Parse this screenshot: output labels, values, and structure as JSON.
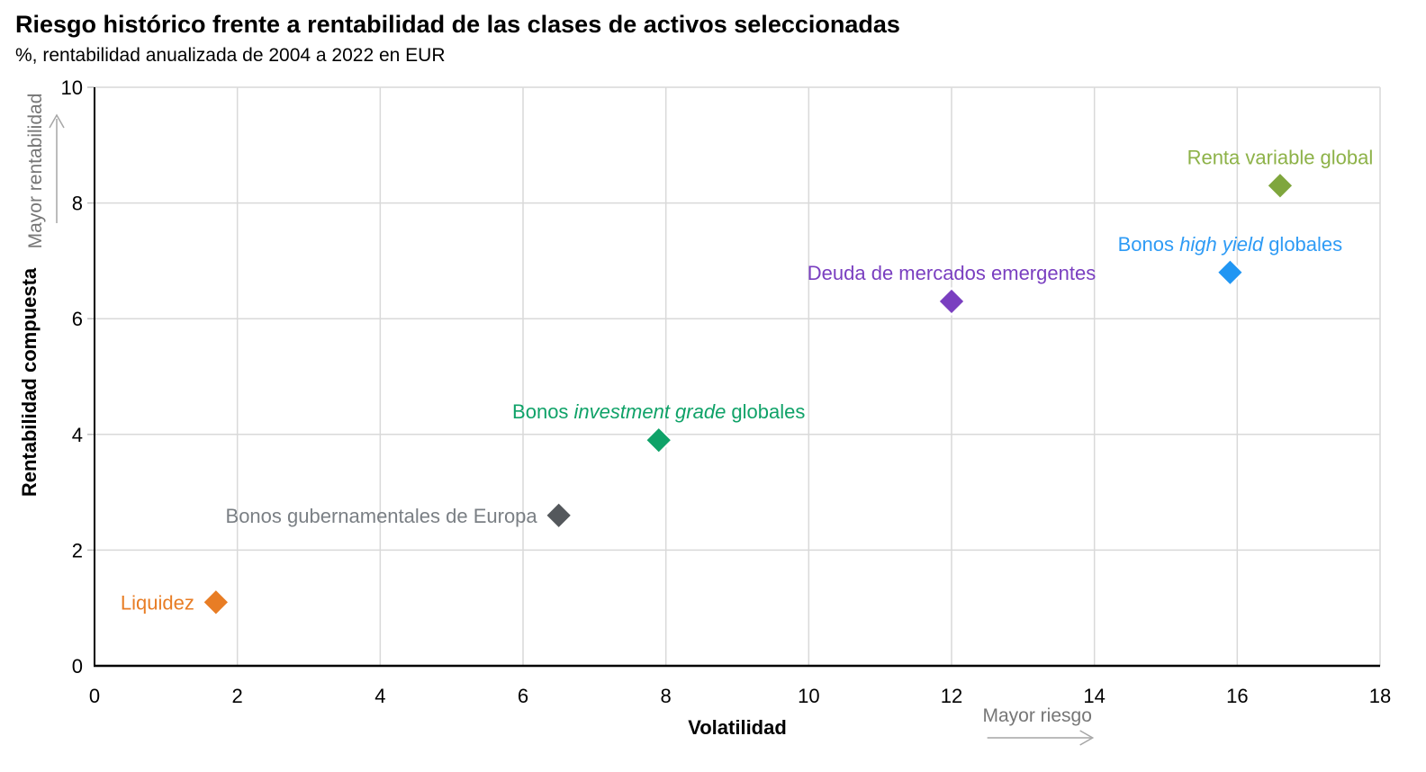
{
  "header": {
    "title": "Riesgo histórico frente a rentabilidad de las clases de activos seleccionadas",
    "subtitle": "%, rentabilidad anualizada de 2004 a 2022 en EUR"
  },
  "chart_data": {
    "type": "scatter",
    "title": "Riesgo histórico frente a rentabilidad de las clases de activos seleccionadas",
    "subtitle": "%, rentabilidad anualizada de 2004 a 2022 en EUR",
    "xlabel": "Volatilidad",
    "ylabel": "Rentabilidad compuesta",
    "x_annotation": "Mayor riesgo",
    "y_annotation": "Mayor rentabilidad",
    "xlim": [
      0,
      18
    ],
    "ylim": [
      0,
      10
    ],
    "x_ticks": [
      0,
      2,
      4,
      6,
      8,
      10,
      12,
      14,
      16,
      18
    ],
    "y_ticks": [
      0,
      2,
      4,
      6,
      8,
      10
    ],
    "grid": true,
    "marker": "diamond",
    "legend_position": "none",
    "units": "%, annualized return 2004-2022 in EUR",
    "series": [
      {
        "name": "Liquidez",
        "x": 1.7,
        "y": 1.1,
        "color": "#E87D25",
        "label_color": "#E87D25",
        "label_parts": [
          {
            "text": "Liquidez",
            "italic": false
          }
        ],
        "label_position": "left"
      },
      {
        "name": "Bonos gubernamentales de Europa",
        "x": 6.5,
        "y": 2.6,
        "color": "#54585C",
        "label_color": "#7A7F84",
        "label_parts": [
          {
            "text": "Bonos gubernamentales de Europa",
            "italic": false
          }
        ],
        "label_position": "left"
      },
      {
        "name": "Bonos investment grade globales",
        "x": 7.9,
        "y": 3.9,
        "color": "#0FA268",
        "label_color": "#0FA268",
        "label_parts": [
          {
            "text": "Bonos ",
            "italic": false
          },
          {
            "text": "investment grade",
            "italic": true
          },
          {
            "text": " globales",
            "italic": false
          }
        ],
        "label_position": "above"
      },
      {
        "name": "Deuda de mercados emergentes",
        "x": 12.0,
        "y": 6.3,
        "color": "#7A3FC0",
        "label_color": "#7A3FC0",
        "label_parts": [
          {
            "text": "Deuda de mercados emergentes",
            "italic": false
          }
        ],
        "label_position": "above"
      },
      {
        "name": "Bonos high yield globales",
        "x": 15.9,
        "y": 6.8,
        "color": "#2196F3",
        "label_color": "#2E9BF5",
        "label_parts": [
          {
            "text": "Bonos ",
            "italic": false
          },
          {
            "text": "high yield",
            "italic": true
          },
          {
            "text": " globales",
            "italic": false
          }
        ],
        "label_position": "above"
      },
      {
        "name": "Renta variable global",
        "x": 16.6,
        "y": 8.3,
        "color": "#7FA63D",
        "label_color": "#8DB248",
        "label_parts": [
          {
            "text": "Renta variable global",
            "italic": false
          }
        ],
        "label_position": "above"
      }
    ],
    "colors": {
      "grid": "#D9D9D9",
      "axis": "#000000",
      "tick_text": "#000000",
      "axis_label": "#000000",
      "annotation_text": "#767676",
      "arrow": "#A6A6A6",
      "background": "#FFFFFF"
    }
  }
}
